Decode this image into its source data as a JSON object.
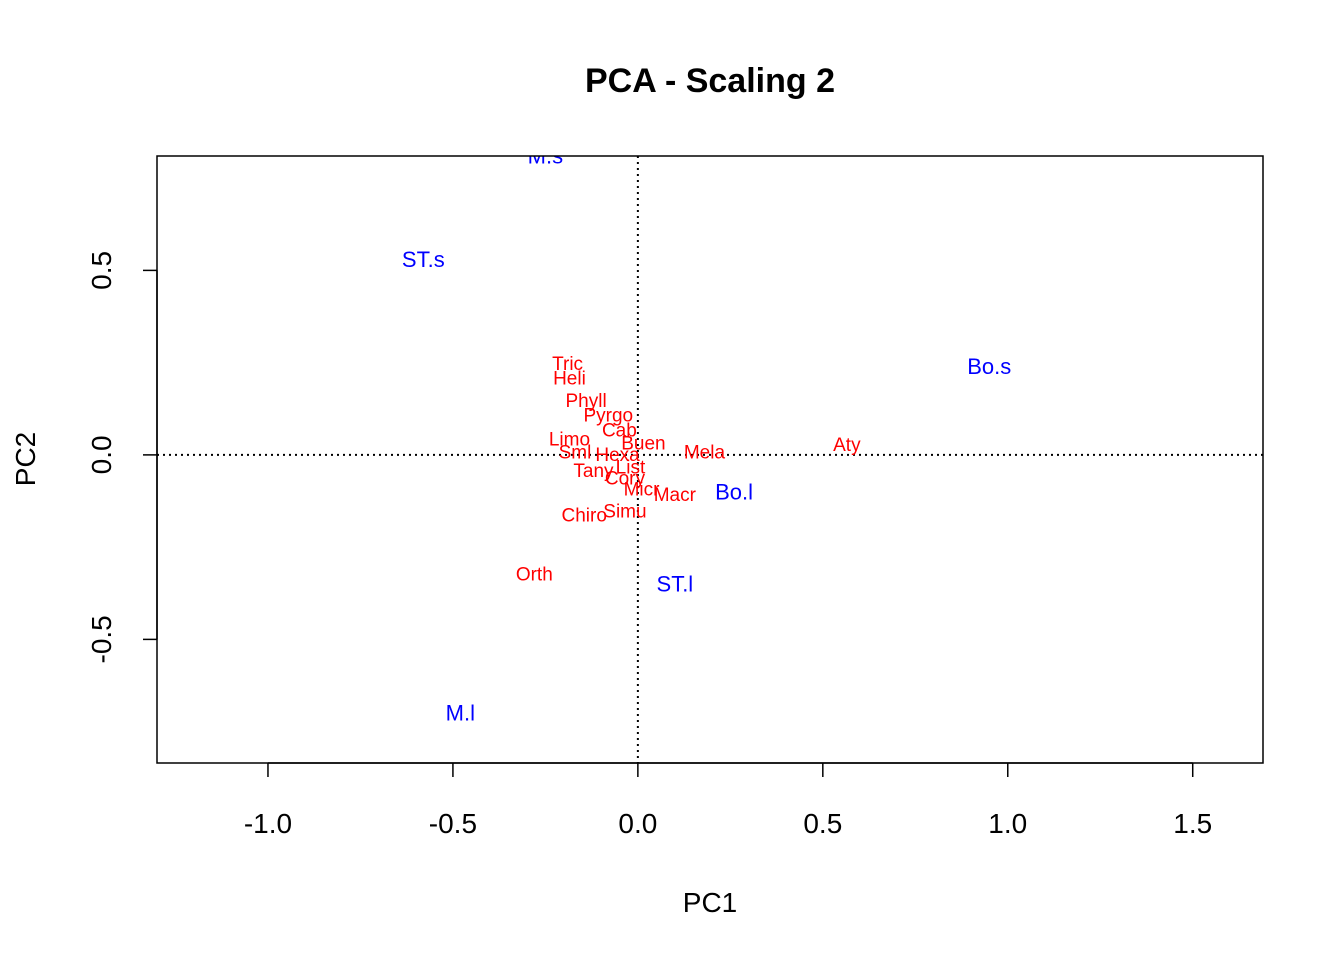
{
  "chart_data": {
    "type": "scatter",
    "title": "PCA - Scaling 2",
    "xlabel": "PC1",
    "ylabel": "PC2",
    "xlim": [
      -1.3,
      1.69
    ],
    "ylim": [
      -0.835,
      0.81
    ],
    "xticks": [
      -1.0,
      -0.5,
      0.0,
      0.5,
      1.0,
      1.5
    ],
    "xtick_labels": [
      "-1.0",
      "-0.5",
      "0.0",
      "0.5",
      "1.0",
      "1.5"
    ],
    "yticks": [
      -0.5,
      0.0,
      0.5
    ],
    "ytick_labels": [
      "-0.5",
      "0.0",
      "0.5"
    ],
    "reference_lines": {
      "x": 0,
      "y": 0,
      "style": "dotted"
    },
    "colors": {
      "sites": "#0000ff",
      "species": "#ff0000"
    },
    "sites": [
      {
        "label": "M.s",
        "x": -0.25,
        "y": 0.81
      },
      {
        "label": "ST.s",
        "x": -0.58,
        "y": 0.53
      },
      {
        "label": "Bo.s",
        "x": 0.95,
        "y": 0.24
      },
      {
        "label": "Bo.l",
        "x": 0.26,
        "y": -0.1
      },
      {
        "label": "ST.l",
        "x": 0.1,
        "y": -0.35
      },
      {
        "label": "M.l",
        "x": -0.48,
        "y": -0.7
      }
    ],
    "species": [
      {
        "label": "Tric",
        "x": -0.19,
        "y": 0.245
      },
      {
        "label": "Heli",
        "x": -0.185,
        "y": 0.205
      },
      {
        "label": "Phyll",
        "x": -0.14,
        "y": 0.145
      },
      {
        "label": "Pyrgo",
        "x": -0.08,
        "y": 0.105
      },
      {
        "label": "Cab",
        "x": -0.05,
        "y": 0.065
      },
      {
        "label": "Buen",
        "x": 0.015,
        "y": 0.03
      },
      {
        "label": "Limo",
        "x": -0.185,
        "y": 0.04
      },
      {
        "label": "Sml",
        "x": -0.17,
        "y": 0.005
      },
      {
        "label": "Hexa",
        "x": -0.055,
        "y": -0.002
      },
      {
        "label": "Mela",
        "x": 0.18,
        "y": 0.005
      },
      {
        "label": "Aty",
        "x": 0.565,
        "y": 0.025
      },
      {
        "label": "Tany",
        "x": -0.12,
        "y": -0.045
      },
      {
        "label": "List",
        "x": -0.02,
        "y": -0.035
      },
      {
        "label": "Cory",
        "x": -0.035,
        "y": -0.065
      },
      {
        "label": "Micr",
        "x": 0.01,
        "y": -0.095
      },
      {
        "label": "Macr",
        "x": 0.1,
        "y": -0.11
      },
      {
        "label": "Chiro",
        "x": -0.145,
        "y": -0.165
      },
      {
        "label": "Simu",
        "x": -0.035,
        "y": -0.155
      },
      {
        "label": "Orth",
        "x": -0.28,
        "y": -0.325
      }
    ]
  }
}
